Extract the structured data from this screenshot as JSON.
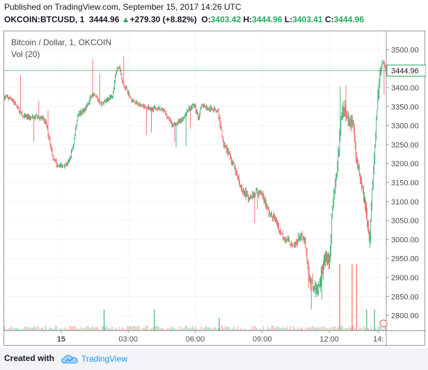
{
  "header": {
    "published": "Published on TradingView.com, September 15, 2017 14:26 UTC",
    "symbol": "OKCOIN:BTCUSD, 1",
    "last": "3444.96",
    "up_arrow": "▲",
    "change": "+279.30 (+8.82%)",
    "o_label": "O:",
    "o_value": "3403.42",
    "h_label": "H:",
    "h_value": "3444.96",
    "l_label": "L:",
    "l_value": "3403.41",
    "c_label": "C:",
    "c_value": "3444.96"
  },
  "legend": {
    "series_title": "Bitcoin / Dollar, 1, OKCOIN",
    "volume_label": "Vol (20)"
  },
  "footer": {
    "created_with": "Created with",
    "brand": "TradingView",
    "logo_icon": "cloud-logo-icon"
  },
  "colors": {
    "up": "#26a65b",
    "down": "#ef5350",
    "price_line": "#26a65b",
    "accent": "#2196f3"
  },
  "chart_data": {
    "type": "candlestick",
    "symbol": "OKCOIN:BTCUSD",
    "interval": "1",
    "y_axis": {
      "min": 2770,
      "max": 3530,
      "ticks": [
        2800,
        2850,
        2900,
        2950,
        3000,
        3050,
        3100,
        3150,
        3200,
        3250,
        3300,
        3350,
        3400,
        3450,
        3500
      ],
      "tick_labels": [
        "2800.00",
        "2850.00",
        "2900.00",
        "2950.00",
        "3000.00",
        "3050.00",
        "3100.00",
        "3150.00",
        "3200.00",
        "3250.00",
        "3300.00",
        "3350.00",
        "3400.00",
        "3450.00",
        "3500.00"
      ]
    },
    "x_axis": {
      "start_hour": -2.55,
      "end_hour": 14.55,
      "ticks": [
        {
          "hour": 0,
          "label": "15",
          "bold": true
        },
        {
          "hour": 3,
          "label": "03:00"
        },
        {
          "hour": 6,
          "label": "06:00"
        },
        {
          "hour": 9,
          "label": "09:00"
        },
        {
          "hour": 12,
          "label": "12:00"
        },
        {
          "hour": 14.2,
          "label": "14:"
        }
      ]
    },
    "last_price": {
      "value": 3444.96,
      "label": "3444.96"
    },
    "price_path": [
      [
        -2.55,
        3375
      ],
      [
        -2.2,
        3370
      ],
      [
        -1.95,
        3345
      ],
      [
        -1.7,
        3322
      ],
      [
        -1.3,
        3320
      ],
      [
        -1.0,
        3325
      ],
      [
        -0.7,
        3310
      ],
      [
        -0.5,
        3255
      ],
      [
        -0.35,
        3210
      ],
      [
        -0.15,
        3196
      ],
      [
        0.1,
        3195
      ],
      [
        0.35,
        3205
      ],
      [
        0.55,
        3250
      ],
      [
        0.75,
        3330
      ],
      [
        1.0,
        3340
      ],
      [
        1.2,
        3355
      ],
      [
        1.35,
        3380
      ],
      [
        1.55,
        3375
      ],
      [
        1.8,
        3355
      ],
      [
        2.1,
        3370
      ],
      [
        2.3,
        3380
      ],
      [
        2.45,
        3440
      ],
      [
        2.6,
        3460
      ],
      [
        2.75,
        3410
      ],
      [
        2.95,
        3395
      ],
      [
        3.15,
        3365
      ],
      [
        3.5,
        3355
      ],
      [
        3.8,
        3345
      ],
      [
        4.2,
        3345
      ],
      [
        4.6,
        3340
      ],
      [
        5.0,
        3300
      ],
      [
        5.4,
        3315
      ],
      [
        5.7,
        3345
      ],
      [
        5.95,
        3355
      ],
      [
        6.15,
        3320
      ],
      [
        6.3,
        3355
      ],
      [
        6.55,
        3345
      ],
      [
        6.8,
        3345
      ],
      [
        7.0,
        3340
      ],
      [
        7.25,
        3260
      ],
      [
        7.5,
        3225
      ],
      [
        7.8,
        3180
      ],
      [
        8.1,
        3130
      ],
      [
        8.4,
        3110
      ],
      [
        8.7,
        3125
      ],
      [
        9.0,
        3120
      ],
      [
        9.3,
        3070
      ],
      [
        9.6,
        3050
      ],
      [
        9.8,
        3020
      ],
      [
        10.1,
        3000
      ],
      [
        10.4,
        2980
      ],
      [
        10.7,
        3010
      ],
      [
        10.9,
        2995
      ],
      [
        11.1,
        2895
      ],
      [
        11.35,
        2875
      ],
      [
        11.55,
        2875
      ],
      [
        11.7,
        2925
      ],
      [
        11.85,
        2960
      ],
      [
        12.0,
        2935
      ],
      [
        12.15,
        3090
      ],
      [
        12.3,
        3150
      ],
      [
        12.5,
        3300
      ],
      [
        12.65,
        3350
      ],
      [
        12.85,
        3320
      ],
      [
        13.05,
        3310
      ],
      [
        13.25,
        3200
      ],
      [
        13.45,
        3150
      ],
      [
        13.6,
        3100
      ],
      [
        13.8,
        2990
      ],
      [
        13.95,
        3160
      ],
      [
        14.1,
        3300
      ],
      [
        14.25,
        3440
      ],
      [
        14.4,
        3470
      ],
      [
        14.55,
        3444.96
      ]
    ],
    "volume": {
      "baseline": "small",
      "spikes": [
        [
          1.9,
          "mid"
        ],
        [
          4.15,
          "mid"
        ],
        [
          7.05,
          "small"
        ],
        [
          12.45,
          "tall"
        ],
        [
          13.0,
          "tall"
        ],
        [
          13.2,
          "tall"
        ],
        [
          13.65,
          "mid"
        ],
        [
          14.0,
          "mid"
        ]
      ]
    },
    "grid": true
  }
}
